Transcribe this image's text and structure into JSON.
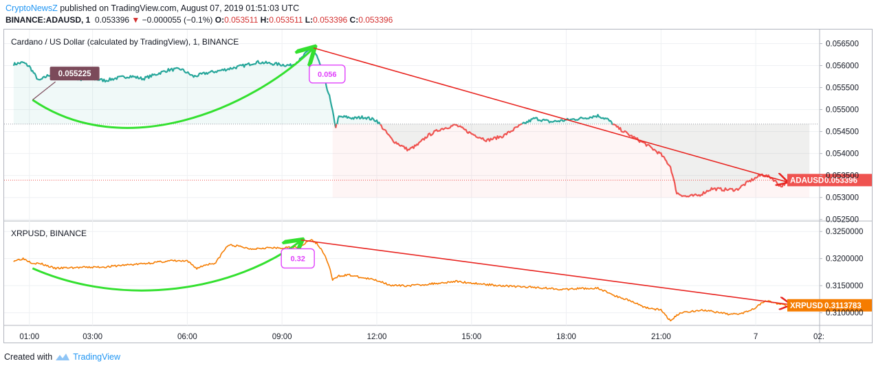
{
  "header": {
    "brand": "CryptoNewsZ",
    "published": " published on TradingView.com, August 07, 2019 01:51:03 UTC",
    "symbol": "BINANCE:ADAUSD, 1",
    "last": "0.053396",
    "change_arrow": "▼",
    "change": "−0.000055 (−0.1%)",
    "o_label": "O:",
    "o": "0.053511",
    "h_label": "H:",
    "h": "0.053511",
    "l_label": "L:",
    "l": "0.053396",
    "c_label": "C:",
    "c": "0.053396"
  },
  "footer": {
    "created_with": "Created with",
    "tradingview": "TradingView"
  },
  "colors": {
    "ada_up": "#26a69a",
    "ada_down": "#ef5350",
    "xrp_line": "#f57c00",
    "green_arrow": "#33e02f",
    "red_arrow": "#e8231f",
    "magenta": "#e040fb",
    "label_dark": "#7b4a5a"
  },
  "chart_data": [
    {
      "type": "line",
      "title": "Cardano / US Dollar (calculated by TradingView), 1, BINANCE",
      "series": [
        {
          "name": "ADAUSD",
          "x": [
            0.5,
            0.8,
            1.0,
            1.3,
            1.6,
            2.0,
            2.3,
            2.6,
            3.0,
            3.4,
            3.8,
            4.2,
            4.6,
            5.0,
            5.4,
            5.8,
            6.2,
            6.6,
            7.0,
            7.4,
            7.8,
            8.2,
            8.6,
            9.0,
            9.3,
            9.6,
            9.9,
            10.1,
            10.3,
            10.5,
            10.7,
            10.8,
            11.0,
            11.3,
            11.6,
            12.0,
            12.5,
            13.0,
            13.3,
            13.6,
            14.0,
            14.5,
            15.0,
            15.5,
            16.0,
            16.5,
            17.0,
            17.5,
            18.0,
            18.5,
            19.0,
            19.3,
            19.6,
            20.0,
            20.5,
            21.0,
            21.3,
            21.5,
            21.8,
            22.2,
            22.6,
            23.0,
            23.4,
            23.8,
            24.2,
            24.5,
            24.8,
            25.2,
            25.5,
            25.7
          ],
          "y": [
            0.05603,
            0.05607,
            0.05598,
            0.05565,
            0.05578,
            0.05586,
            0.05572,
            0.05568,
            0.0557,
            0.05566,
            0.05572,
            0.05576,
            0.0557,
            0.0558,
            0.0559,
            0.05592,
            0.05575,
            0.05583,
            0.05588,
            0.05594,
            0.056,
            0.05608,
            0.05605,
            0.05602,
            0.056,
            0.05615,
            0.0564,
            0.05622,
            0.0558,
            0.0553,
            0.0546,
            0.05483,
            0.05483,
            0.0548,
            0.05483,
            0.05475,
            0.0543,
            0.05408,
            0.0542,
            0.0544,
            0.05455,
            0.05465,
            0.05445,
            0.0543,
            0.0544,
            0.05462,
            0.0548,
            0.05472,
            0.05476,
            0.0548,
            0.05486,
            0.05478,
            0.0546,
            0.05442,
            0.05422,
            0.05398,
            0.0537,
            0.0531,
            0.05302,
            0.05305,
            0.0532,
            0.05318,
            0.05318,
            0.05337,
            0.05352,
            0.05345,
            0.05325,
            0.05348,
            0.05352,
            0.0534
          ]
        }
      ],
      "ylim": [
        0.05248,
        0.05682
      ],
      "yticks": [
        "0.056500",
        "0.056000",
        "0.055500",
        "0.055000",
        "0.054500",
        "0.054000",
        "0.053500",
        "0.053000",
        "0.052500"
      ],
      "reference_price": 0.05467,
      "last_label": "ADAUSD",
      "last_value": "0.053396",
      "annotations": {
        "low_label": "0.055225",
        "peak_label": "0.056"
      }
    },
    {
      "type": "line",
      "title": "XRPUSD, BINANCE",
      "series": [
        {
          "name": "XRPUSD",
          "x": [
            0.5,
            0.8,
            1.1,
            1.4,
            1.8,
            2.2,
            2.6,
            3.0,
            3.5,
            4.0,
            4.5,
            5.0,
            5.5,
            6.0,
            6.3,
            6.6,
            6.9,
            7.1,
            7.3,
            7.6,
            8.0,
            8.5,
            9.0,
            9.3,
            9.6,
            9.9,
            10.1,
            10.3,
            10.5,
            10.6,
            10.8,
            11.1,
            11.5,
            12.0,
            12.5,
            13.0,
            13.5,
            14.0,
            14.5,
            15.0,
            15.5,
            16.0,
            16.5,
            17.0,
            17.5,
            18.0,
            18.5,
            19.0,
            19.3,
            19.6,
            20.0,
            20.5,
            21.0,
            21.3,
            21.6,
            22.0,
            22.4,
            22.8,
            23.2,
            23.6,
            24.0,
            24.3,
            24.6,
            25.0,
            25.3,
            25.6,
            25.7
          ],
          "y": [
            0.3196,
            0.32,
            0.3192,
            0.319,
            0.3182,
            0.3183,
            0.31835,
            0.3184,
            0.3185,
            0.3188,
            0.319,
            0.3193,
            0.3196,
            0.3195,
            0.3182,
            0.3189,
            0.3192,
            0.321,
            0.3225,
            0.3223,
            0.3218,
            0.322,
            0.3219,
            0.3221,
            0.3223,
            0.3235,
            0.3228,
            0.3212,
            0.3185,
            0.316,
            0.3168,
            0.317,
            0.3165,
            0.316,
            0.315,
            0.315,
            0.3152,
            0.3155,
            0.3158,
            0.3155,
            0.3152,
            0.315,
            0.3148,
            0.3147,
            0.3145,
            0.3143,
            0.3145,
            0.3145,
            0.3138,
            0.313,
            0.3123,
            0.311,
            0.3105,
            0.3085,
            0.31,
            0.3103,
            0.3105,
            0.31,
            0.3097,
            0.31,
            0.311,
            0.3123,
            0.3118,
            0.3113,
            0.3115,
            0.312,
            0.3114
          ]
        }
      ],
      "ylim": [
        0.3078,
        0.3268
      ],
      "yticks": [
        "0.3250000",
        "0.3200000",
        "0.3150000",
        "0.3100000"
      ],
      "last_label": "XRPUSD",
      "last_value": "0.3113783",
      "annotations": {
        "peak_label": "0.32"
      }
    }
  ],
  "x_axis": {
    "ticks": [
      {
        "label": "01:00",
        "x": 1
      },
      {
        "label": "03:00",
        "x": 3
      },
      {
        "label": "06:00",
        "x": 6
      },
      {
        "label": "09:00",
        "x": 9
      },
      {
        "label": "12:00",
        "x": 12
      },
      {
        "label": "15:00",
        "x": 15
      },
      {
        "label": "18:00",
        "x": 18
      },
      {
        "label": "21:00",
        "x": 21
      },
      {
        "label": "7",
        "x": 24
      },
      {
        "label": "02:",
        "x": 26
      }
    ],
    "xlim": [
      0.2,
      26.0
    ]
  }
}
